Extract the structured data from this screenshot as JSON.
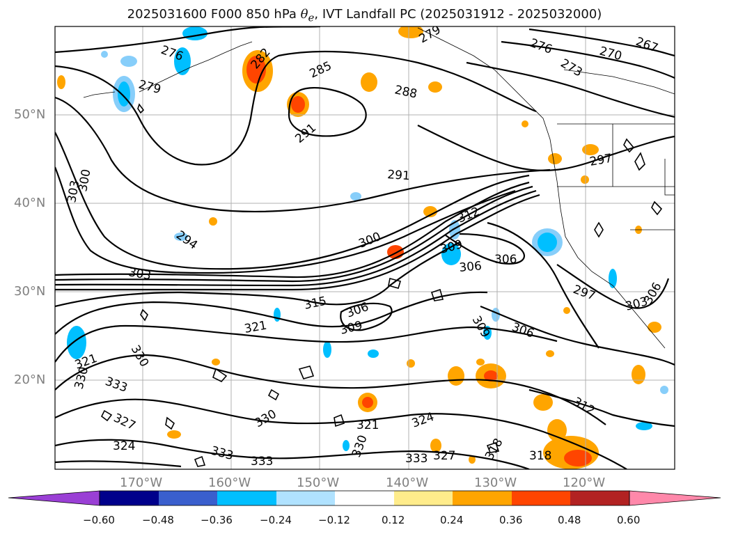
{
  "figure": {
    "title_prefix": "2025031600 F000 850 hPa ",
    "title_symbol": "θ",
    "title_subscript": "e",
    "title_suffix": ", IVT Landfall PC (2025031912 - 2025032000)"
  },
  "axes": {
    "lat_ticks": [
      "50°N",
      "40°N",
      "30°N",
      "20°N"
    ],
    "lon_ticks": [
      "170°W",
      "160°W",
      "150°W",
      "140°W",
      "130°W",
      "120°W"
    ],
    "grid": true
  },
  "contour_labels": [
    {
      "text": "276"
    },
    {
      "text": "279"
    },
    {
      "text": "282"
    },
    {
      "text": "285"
    },
    {
      "text": "288"
    },
    {
      "text": "291"
    },
    {
      "text": "291"
    },
    {
      "text": "294"
    },
    {
      "text": "300"
    },
    {
      "text": "303"
    },
    {
      "text": "303"
    },
    {
      "text": "300"
    },
    {
      "text": "312"
    },
    {
      "text": "309"
    },
    {
      "text": "306"
    },
    {
      "text": "306"
    },
    {
      "text": "315"
    },
    {
      "text": "306"
    },
    {
      "text": "309"
    },
    {
      "text": "321"
    },
    {
      "text": "330"
    },
    {
      "text": "321"
    },
    {
      "text": "333"
    },
    {
      "text": "327"
    },
    {
      "text": "324"
    },
    {
      "text": "330"
    },
    {
      "text": "330"
    },
    {
      "text": "321"
    },
    {
      "text": "324"
    },
    {
      "text": "333"
    },
    {
      "text": "333"
    },
    {
      "text": "330"
    },
    {
      "text": "333"
    },
    {
      "text": "327"
    },
    {
      "text": "318"
    },
    {
      "text": "318"
    },
    {
      "text": "312"
    },
    {
      "text": "306"
    },
    {
      "text": "309"
    },
    {
      "text": "297"
    },
    {
      "text": "297"
    },
    {
      "text": "303"
    },
    {
      "text": "306"
    },
    {
      "text": "276"
    },
    {
      "text": "273"
    },
    {
      "text": "270"
    },
    {
      "text": "267"
    },
    {
      "text": "279"
    }
  ],
  "colorbar": {
    "ticks": [
      "−0.60",
      "−0.48",
      "−0.36",
      "−0.24",
      "−0.12",
      "0.12",
      "0.24",
      "0.36",
      "0.48",
      "0.60"
    ],
    "colors": {
      "under": "#9a3fd5",
      "bins": [
        "#00008b",
        "#3a5fcd",
        "#00bfff",
        "#b0e2ff",
        "#ffffff",
        "#ffec8b",
        "#ffa500",
        "#ff4500",
        "#b22222"
      ],
      "over": "#ff88aa"
    }
  }
}
